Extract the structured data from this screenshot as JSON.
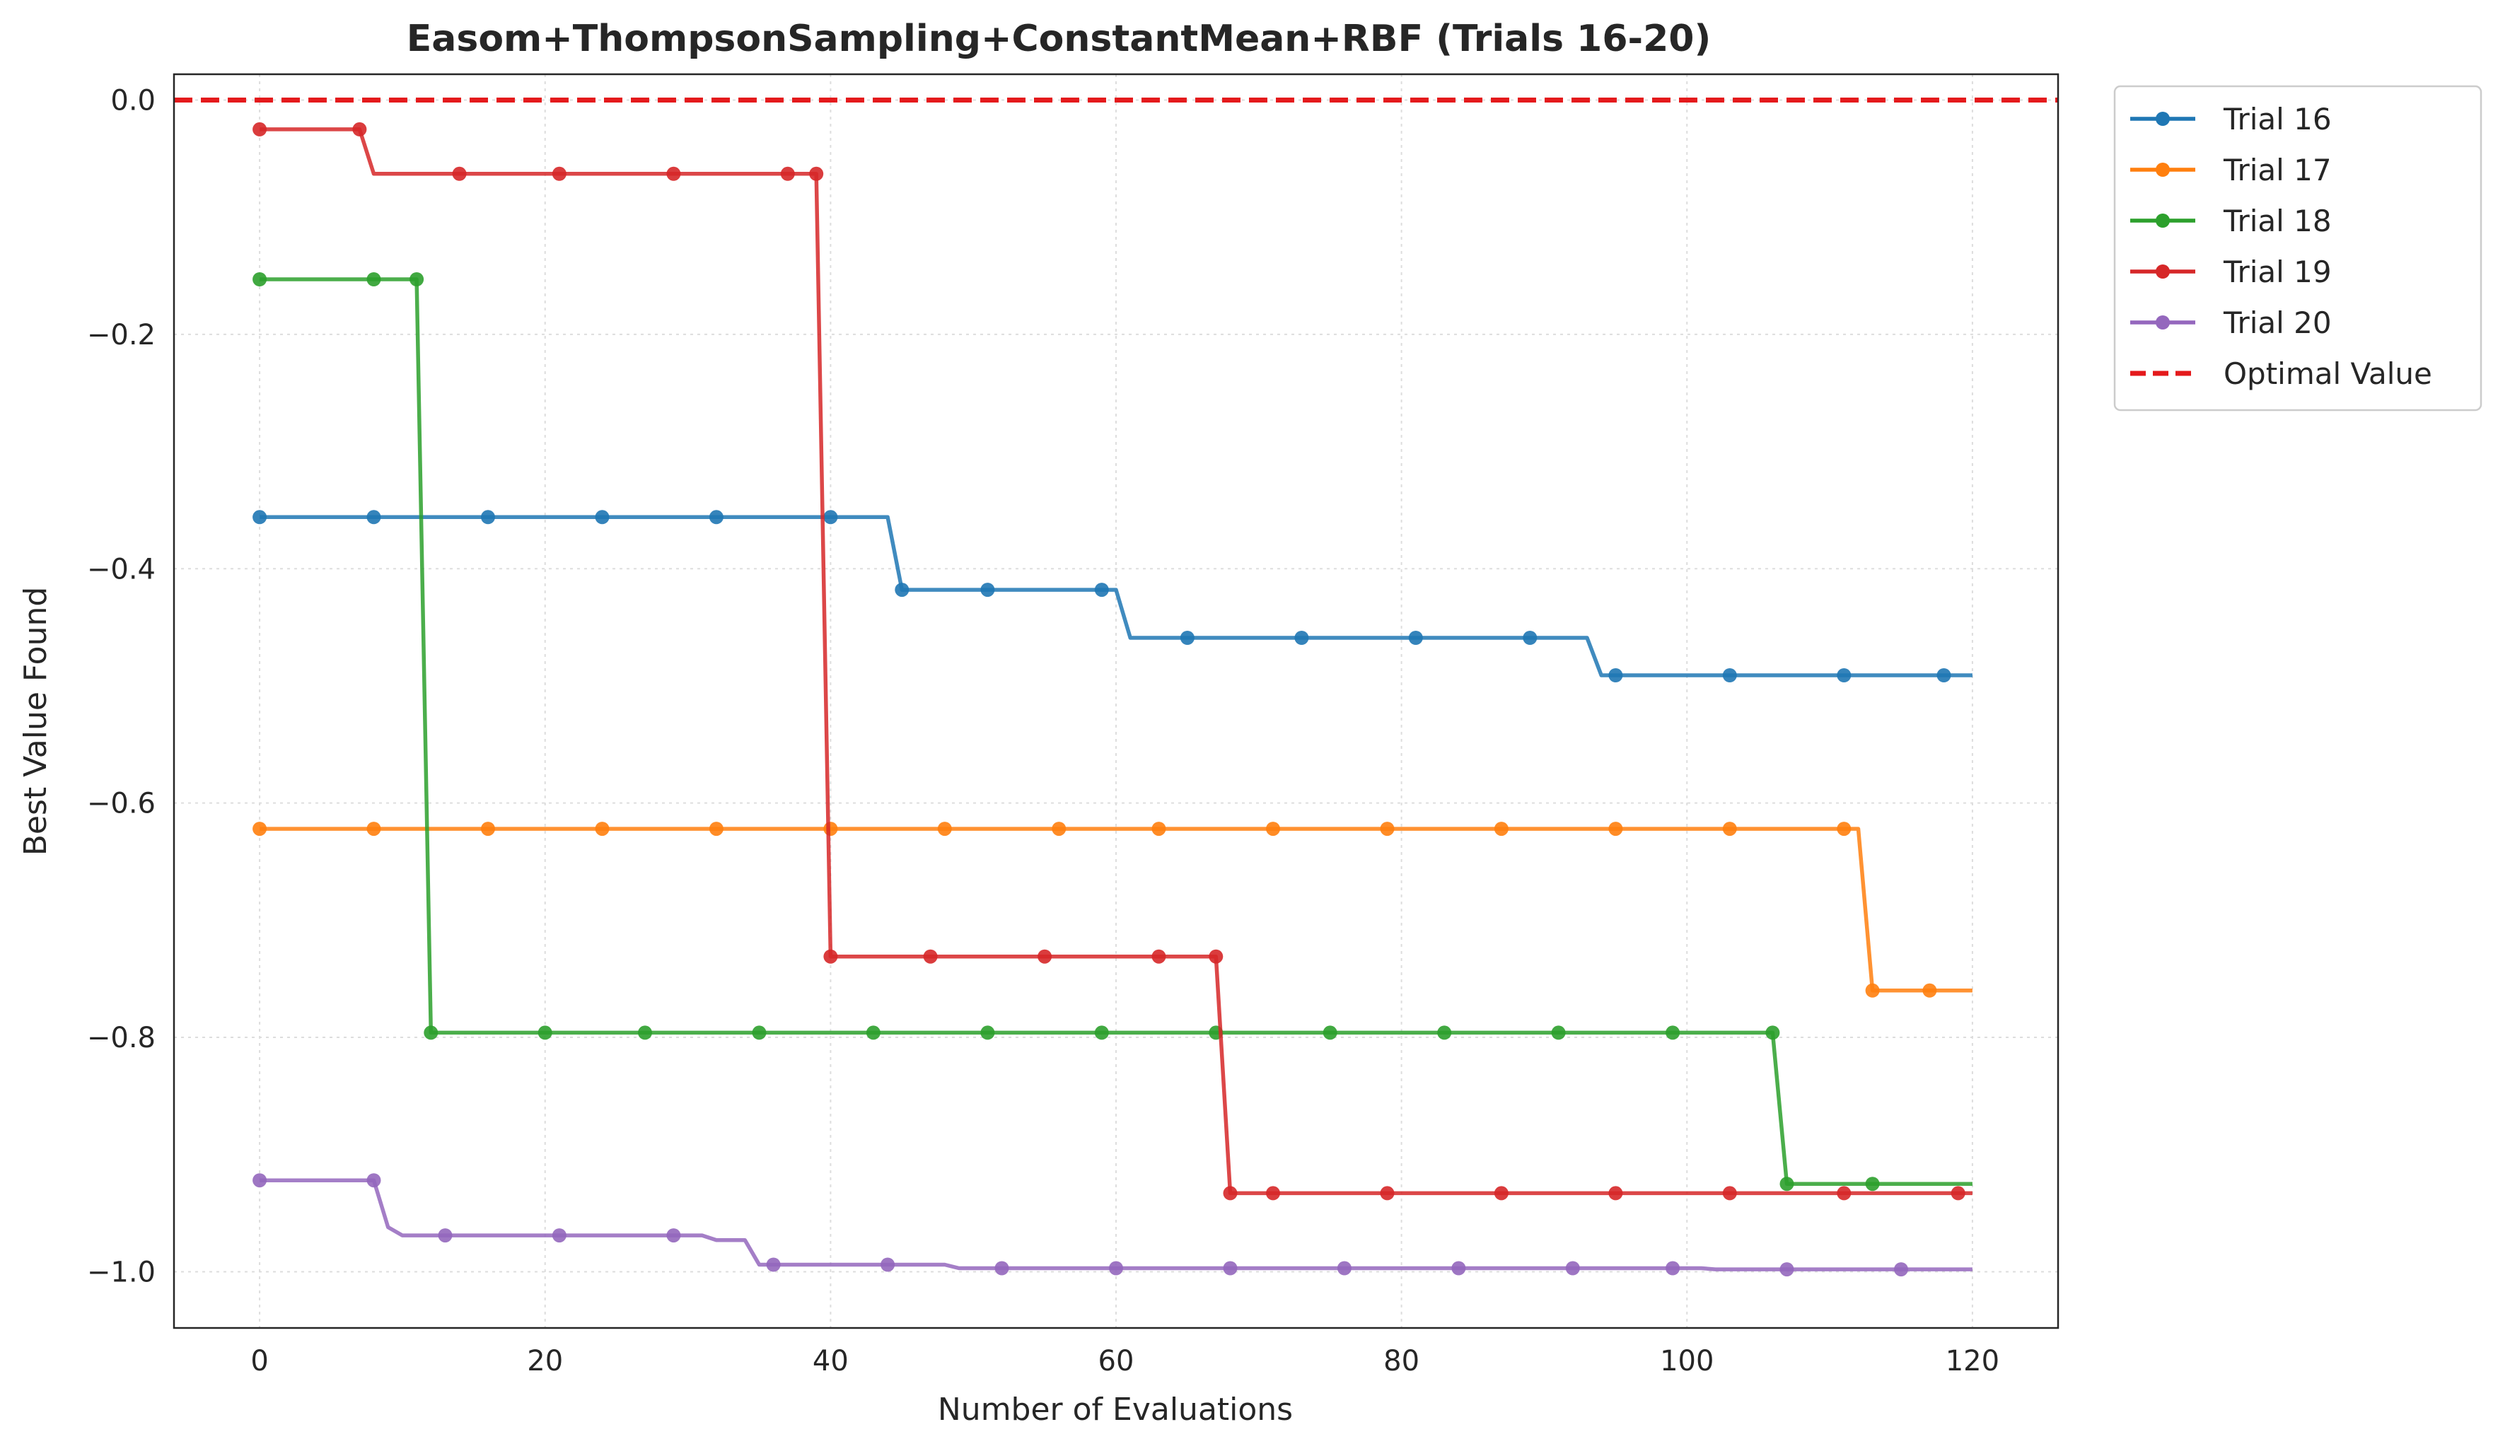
{
  "chart_data": {
    "type": "line",
    "title": "Easom+ThompsonSampling+ConstantMean+RBF (Trials 16-20)",
    "xlabel": "Number of Evaluations",
    "ylabel": "Best Value Found",
    "xlim": [
      -6,
      126
    ],
    "ylim": [
      -1.048,
      0.022
    ],
    "xticks": [
      0,
      20,
      40,
      60,
      80,
      100,
      120
    ],
    "yticks": [
      0.0,
      -0.2,
      -0.4,
      -0.6,
      -0.8,
      -1.0
    ],
    "ytick_labels": [
      "0.0",
      "−0.2",
      "−0.4",
      "−0.6",
      "−0.8",
      "−1.0"
    ],
    "grid": true,
    "legend_position": "outside-top-right",
    "reference_line": {
      "name": "Optimal Value",
      "y": 0.0,
      "color": "#e41a1c",
      "style": "dashed"
    },
    "series": [
      {
        "name": "Trial 16",
        "color": "#1f77b4",
        "points": [
          [
            0,
            -0.356
          ],
          [
            44,
            -0.356
          ],
          [
            45,
            -0.418
          ],
          [
            60,
            -0.418
          ],
          [
            61,
            -0.459
          ],
          [
            93,
            -0.459
          ],
          [
            94,
            -0.491
          ],
          [
            120,
            -0.491
          ]
        ],
        "markers": [
          0,
          8,
          16,
          24,
          32,
          40,
          45,
          51,
          59,
          65,
          73,
          81,
          89,
          95,
          103,
          111,
          118
        ]
      },
      {
        "name": "Trial 17",
        "color": "#ff7f0e",
        "points": [
          [
            0,
            -0.622
          ],
          [
            112,
            -0.622
          ],
          [
            113,
            -0.76
          ],
          [
            120,
            -0.76
          ]
        ],
        "markers": [
          0,
          8,
          16,
          24,
          32,
          40,
          48,
          56,
          63,
          71,
          79,
          87,
          95,
          103,
          111,
          113,
          117
        ]
      },
      {
        "name": "Trial 18",
        "color": "#2ca02c",
        "points": [
          [
            0,
            -0.153
          ],
          [
            11,
            -0.153
          ],
          [
            12,
            -0.796
          ],
          [
            106,
            -0.796
          ],
          [
            107,
            -0.925
          ],
          [
            120,
            -0.925
          ]
        ],
        "markers": [
          0,
          8,
          11,
          12,
          20,
          27,
          35,
          43,
          51,
          59,
          67,
          75,
          83,
          91,
          99,
          106,
          107,
          113
        ]
      },
      {
        "name": "Trial 19",
        "color": "#d62728",
        "points": [
          [
            0,
            -0.025
          ],
          [
            7,
            -0.025
          ],
          [
            8,
            -0.063
          ],
          [
            39,
            -0.063
          ],
          [
            40,
            -0.731
          ],
          [
            67,
            -0.731
          ],
          [
            68,
            -0.933
          ],
          [
            120,
            -0.933
          ]
        ],
        "markers": [
          0,
          7,
          14,
          21,
          29,
          37,
          39,
          40,
          47,
          55,
          63,
          67,
          68,
          71,
          79,
          87,
          95,
          103,
          111,
          119
        ]
      },
      {
        "name": "Trial 20",
        "color": "#9467bd",
        "points": [
          [
            0,
            -0.922
          ],
          [
            8,
            -0.922
          ],
          [
            9,
            -0.962
          ],
          [
            10,
            -0.969
          ],
          [
            31,
            -0.969
          ],
          [
            32,
            -0.973
          ],
          [
            34,
            -0.973
          ],
          [
            35,
            -0.994
          ],
          [
            48,
            -0.994
          ],
          [
            49,
            -0.997
          ],
          [
            101,
            -0.997
          ],
          [
            102,
            -0.998
          ],
          [
            120,
            -0.998
          ]
        ],
        "markers": [
          0,
          8,
          13,
          21,
          29,
          36,
          44,
          52,
          60,
          68,
          76,
          84,
          92,
          99,
          107,
          115
        ]
      }
    ]
  }
}
